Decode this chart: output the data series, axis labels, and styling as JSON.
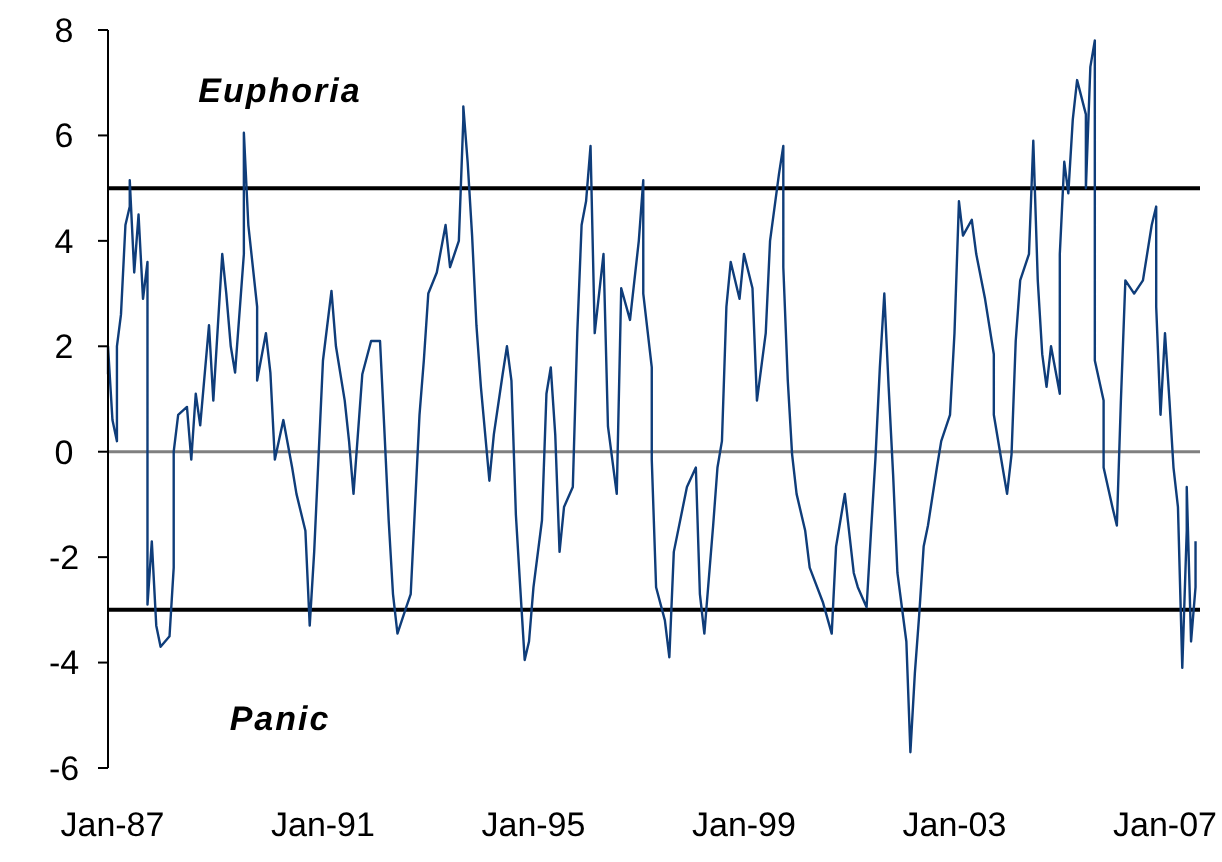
{
  "chart_data": {
    "type": "line",
    "xlim": [
      "1986-12",
      "2007-09"
    ],
    "ylim": [
      -6,
      8
    ],
    "yticks": [
      -6,
      -4,
      -2,
      0,
      2,
      4,
      6,
      8
    ],
    "xticks": [
      {
        "value": "1987-01",
        "label": "Jan-87"
      },
      {
        "value": "1991-01",
        "label": "Jan-91"
      },
      {
        "value": "1995-01",
        "label": "Jan-95"
      },
      {
        "value": "1999-01",
        "label": "Jan-99"
      },
      {
        "value": "2003-01",
        "label": "Jan-03"
      },
      {
        "value": "2007-01",
        "label": "Jan-07"
      }
    ],
    "grid": false,
    "ref_lines": [
      {
        "axis": "y",
        "value": 5,
        "color": "#000000"
      },
      {
        "axis": "y",
        "value": -3,
        "color": "#000000"
      },
      {
        "axis": "y",
        "value": 0,
        "color": "#808080"
      }
    ],
    "annotations": [
      "Euphoria",
      "Panic"
    ],
    "series": [
      {
        "color": "#0f3d7a",
        "x": [
          "1986-12",
          "1986-12",
          "1987-01",
          "1987-02",
          "1987-02",
          "1987-03",
          "1987-04",
          "1987-05",
          "1987-05",
          "1987-06",
          "1987-07",
          "1987-08",
          "1987-09",
          "1987-09",
          "1987-09",
          "1987-10",
          "1987-11",
          "1987-12",
          "1988-02",
          "1988-03",
          "1988-03",
          "1988-04",
          "1988-06",
          "1988-07",
          "1988-08",
          "1988-09",
          "1988-11",
          "1988-12",
          "1989-02",
          "1989-03",
          "1989-04",
          "1989-05",
          "1989-07",
          "1989-07",
          "1989-08",
          "1989-10",
          "1989-10",
          "1989-12",
          "1990-01",
          "1990-02",
          "1990-04",
          "1990-06",
          "1990-07",
          "1990-09",
          "1990-10",
          "1990-11",
          "1991-01",
          "1991-03",
          "1991-04",
          "1991-06",
          "1991-07",
          "1991-08",
          "1991-10",
          "1991-12",
          "1992-02",
          "1992-03",
          "1992-04",
          "1992-05",
          "1992-06",
          "1992-08",
          "1992-09",
          "1992-11",
          "1992-12",
          "1993-01",
          "1993-03",
          "1993-05",
          "1993-06",
          "1993-08",
          "1993-09",
          "1993-09",
          "1993-10",
          "1993-11",
          "1993-12",
          "1994-01",
          "1994-03",
          "1994-04",
          "1994-06",
          "1994-07",
          "1994-08",
          "1994-09",
          "1994-10",
          "1994-11",
          "1994-12",
          "1995-01",
          "1995-03",
          "1995-04",
          "1995-05",
          "1995-06",
          "1995-07",
          "1995-08",
          "1995-10",
          "1995-11",
          "1995-12",
          "1996-01",
          "1996-02",
          "1996-03",
          "1996-05",
          "1996-06",
          "1996-08",
          "1996-09",
          "1996-11",
          "1997-01",
          "1997-02",
          "1997-02",
          "1997-04",
          "1997-04",
          "1997-05",
          "1997-07",
          "1997-08",
          "1997-09",
          "1997-12",
          "1998-02",
          "1998-03",
          "1998-04",
          "1998-06",
          "1998-07",
          "1998-08",
          "1998-09",
          "1998-10",
          "1998-12",
          "1999-01",
          "1999-03",
          "1999-04",
          "1999-06",
          "1999-07",
          "1999-09",
          "1999-10",
          "1999-10",
          "1999-11",
          "1999-12",
          "2000-01",
          "2000-03",
          "2000-04",
          "2000-07",
          "2000-09",
          "2000-10",
          "2000-12",
          "2001-02",
          "2001-03",
          "2001-05",
          "2001-06",
          "2001-07",
          "2001-08",
          "2001-09",
          "2001-10",
          "2001-11",
          "2001-12",
          "2002-01",
          "2002-02",
          "2002-03",
          "2002-04",
          "2002-05",
          "2002-06",
          "2002-07",
          "2002-09",
          "2002-10",
          "2002-12",
          "2003-01",
          "2003-02",
          "2003-03",
          "2003-05",
          "2003-06",
          "2003-08",
          "2003-10",
          "2003-10",
          "2003-12",
          "2004-01",
          "2004-02",
          "2004-03",
          "2004-04",
          "2004-06",
          "2004-07",
          "2004-08",
          "2004-09",
          "2004-10",
          "2004-11",
          "2005-01",
          "2005-01",
          "2005-02",
          "2005-03",
          "2005-04",
          "2005-05",
          "2005-07",
          "2005-07",
          "2005-08",
          "2005-09",
          "2005-09",
          "2005-11",
          "2005-11",
          "2006-01",
          "2006-02",
          "2006-03",
          "2006-04",
          "2006-06",
          "2006-08",
          "2006-10",
          "2006-11",
          "2006-11",
          "2006-12",
          "2007-01",
          "2007-02",
          "2007-03",
          "2007-04",
          "2007-05",
          "2007-06",
          "2007-06",
          "2007-07",
          "2007-08",
          "2007-08"
        ],
        "values": [
          1.47,
          2.0,
          0.6,
          0.2,
          2.0,
          2.6,
          4.3,
          4.65,
          5.15,
          3.4,
          4.5,
          2.9,
          3.6,
          -1.4,
          -2.9,
          -1.7,
          -3.3,
          -3.7,
          -3.5,
          -2.2,
          0,
          0.7,
          0.85,
          -0.15,
          1.1,
          0.5,
          2.4,
          0.97,
          3.75,
          3.0,
          2.0,
          1.5,
          3.75,
          6.05,
          4.3,
          2.75,
          1.35,
          2.25,
          1.5,
          -0.15,
          0.6,
          -0.3,
          -0.8,
          -1.5,
          -3.3,
          -1.9,
          1.73,
          3.05,
          2.0,
          0.97,
          0.2,
          -0.8,
          1.47,
          2.1,
          2.1,
          0.48,
          -1.3,
          -2.7,
          -3.45,
          -2.95,
          -2.7,
          0.7,
          1.73,
          3.0,
          3.4,
          4.3,
          3.5,
          4.0,
          6.3,
          6.55,
          5.5,
          4.1,
          2.4,
          1.23,
          -0.55,
          0.33,
          1.47,
          2.0,
          1.35,
          -1.2,
          -2.57,
          -3.95,
          -3.6,
          -2.57,
          -1.3,
          1.1,
          1.6,
          0.33,
          -1.9,
          -1.05,
          -0.67,
          2.25,
          4.3,
          4.75,
          5.8,
          2.25,
          3.75,
          0.48,
          -0.8,
          3.1,
          2.5,
          4.0,
          5.15,
          3.0,
          1.6,
          -0.15,
          -2.57,
          -3.2,
          -3.9,
          -1.9,
          -0.67,
          -0.3,
          -2.7,
          -3.45,
          -1.4,
          -0.3,
          0.2,
          2.75,
          3.6,
          2.9,
          3.75,
          3.1,
          0.97,
          2.25,
          4.0,
          5.27,
          5.8,
          3.5,
          1.35,
          -0.05,
          -0.8,
          -1.5,
          -2.2,
          -2.85,
          -3.45,
          -1.8,
          -0.8,
          -2.3,
          -2.57,
          -2.95,
          -1.5,
          -0.15,
          1.6,
          3.0,
          1.23,
          -0.43,
          -2.3,
          -2.95,
          -3.6,
          -5.7,
          -4.2,
          -3.1,
          -1.8,
          -1.4,
          -0.3,
          0.2,
          0.7,
          2.25,
          4.75,
          4.1,
          4.4,
          3.75,
          2.9,
          1.85,
          0.7,
          -0.3,
          -0.8,
          -0.05,
          2.1,
          3.25,
          3.75,
          5.9,
          3.25,
          1.85,
          1.23,
          2.0,
          1.1,
          3.75,
          5.5,
          4.9,
          6.3,
          7.05,
          6.4,
          5.0,
          7.3,
          7.8,
          1.73,
          0.97,
          -0.3,
          -1.05,
          -1.4,
          0.97,
          3.25,
          3.0,
          3.25,
          4.3,
          4.65,
          2.75,
          0.7,
          2.25,
          0.97,
          -0.3,
          -1.05,
          -4.1,
          -1.5,
          -0.67,
          -3.6,
          -2.57,
          -1.7
        ]
      }
    ]
  }
}
